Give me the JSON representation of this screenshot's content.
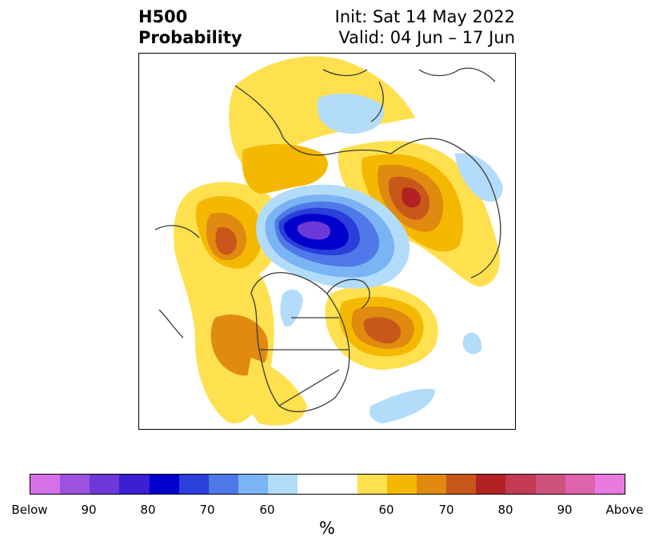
{
  "title": {
    "left_line1": "H500",
    "left_line2": "Probability",
    "right_line1": "Init: Sat 14 May 2022",
    "right_line2": "Valid: 04 Jun – 17 Jun"
  },
  "colorbar": {
    "colors": [
      "#d670e8",
      "#9d52e0",
      "#6c38d8",
      "#3b1fd2",
      "#0000cd",
      "#2a3fdc",
      "#4f78e8",
      "#7ab4f5",
      "#b2dcfa",
      "#ffffff",
      "#ffe04f",
      "#f5b800",
      "#e08a10",
      "#c8581a",
      "#b22222",
      "#c43a52",
      "#cf527e",
      "#de62ac",
      "#e87ae0"
    ],
    "tick_labels": [
      "Below",
      "90",
      "80",
      "70",
      "60",
      "60",
      "70",
      "80",
      "90",
      "Above"
    ],
    "unit": "%"
  },
  "map": {
    "colors": {
      "land_outline": "#3a3a3a",
      "above_60": "#ffe04f",
      "above_65": "#f5b800",
      "above_70": "#e08a10",
      "above_75": "#c8581a",
      "above_80": "#b22222",
      "below_60": "#b2dcfa",
      "below_65": "#7ab4f5",
      "below_70": "#4f78e8",
      "below_75": "#2a3fdc",
      "below_80": "#0000cd",
      "below_85": "#6c38d8"
    }
  }
}
